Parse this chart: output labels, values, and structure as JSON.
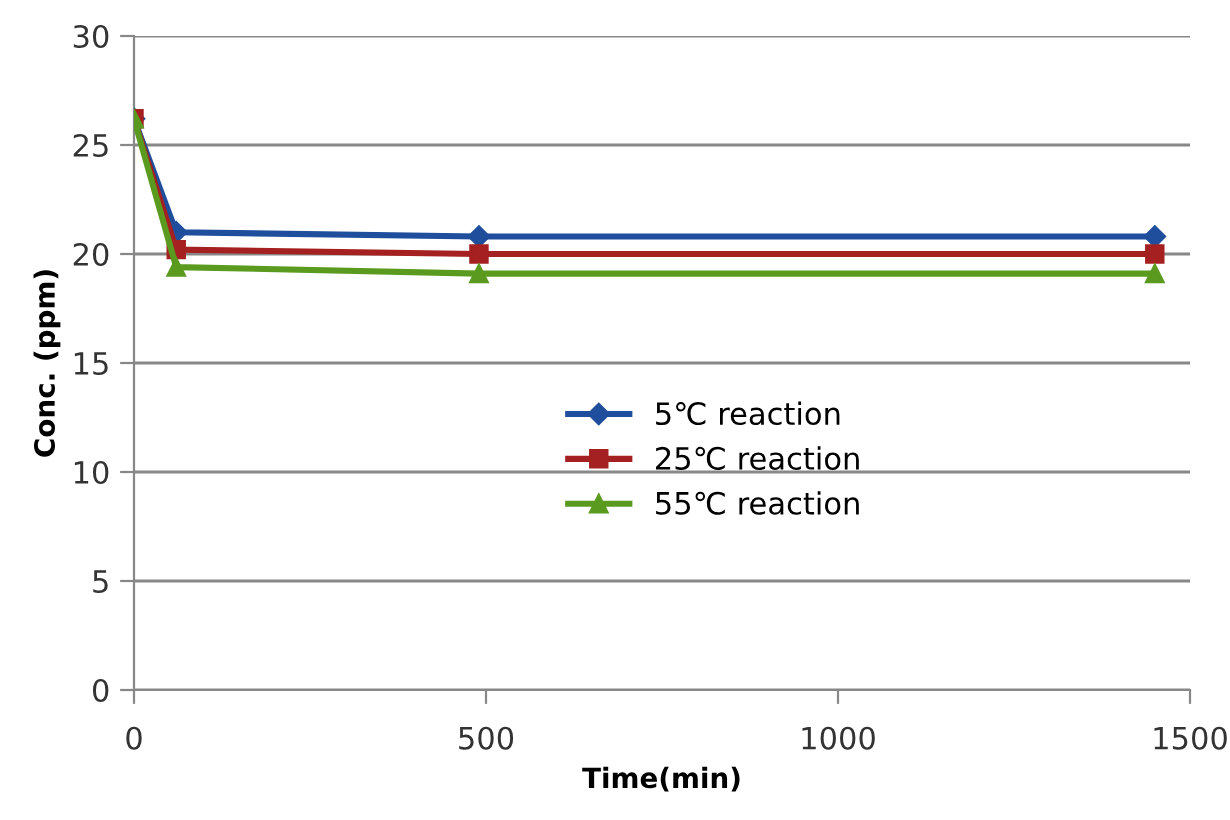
{
  "chart_data": {
    "type": "line",
    "xlabel": "Time(min)",
    "ylabel": "Conc. (ppm)",
    "x": [
      0,
      60,
      490,
      1450
    ],
    "series": [
      {
        "name": "5℃ reaction",
        "color": "#1f4e9c",
        "marker": "diamond",
        "values": [
          26.2,
          21.0,
          20.8,
          20.8
        ]
      },
      {
        "name": "25℃ reaction",
        "color": "#a52020",
        "marker": "square",
        "values": [
          26.2,
          20.2,
          20.0,
          20.0
        ]
      },
      {
        "name": "55℃ reaction",
        "color": "#5a9a1e",
        "marker": "triangle",
        "values": [
          26.2,
          19.4,
          19.1,
          19.1
        ]
      }
    ],
    "xlim": [
      0,
      1500
    ],
    "xticks": [
      0,
      500,
      1000,
      1500
    ],
    "ylim": [
      0,
      30
    ],
    "yticks": [
      0,
      5,
      10,
      15,
      20,
      25,
      30
    ],
    "grid": "y",
    "legend": "center"
  }
}
